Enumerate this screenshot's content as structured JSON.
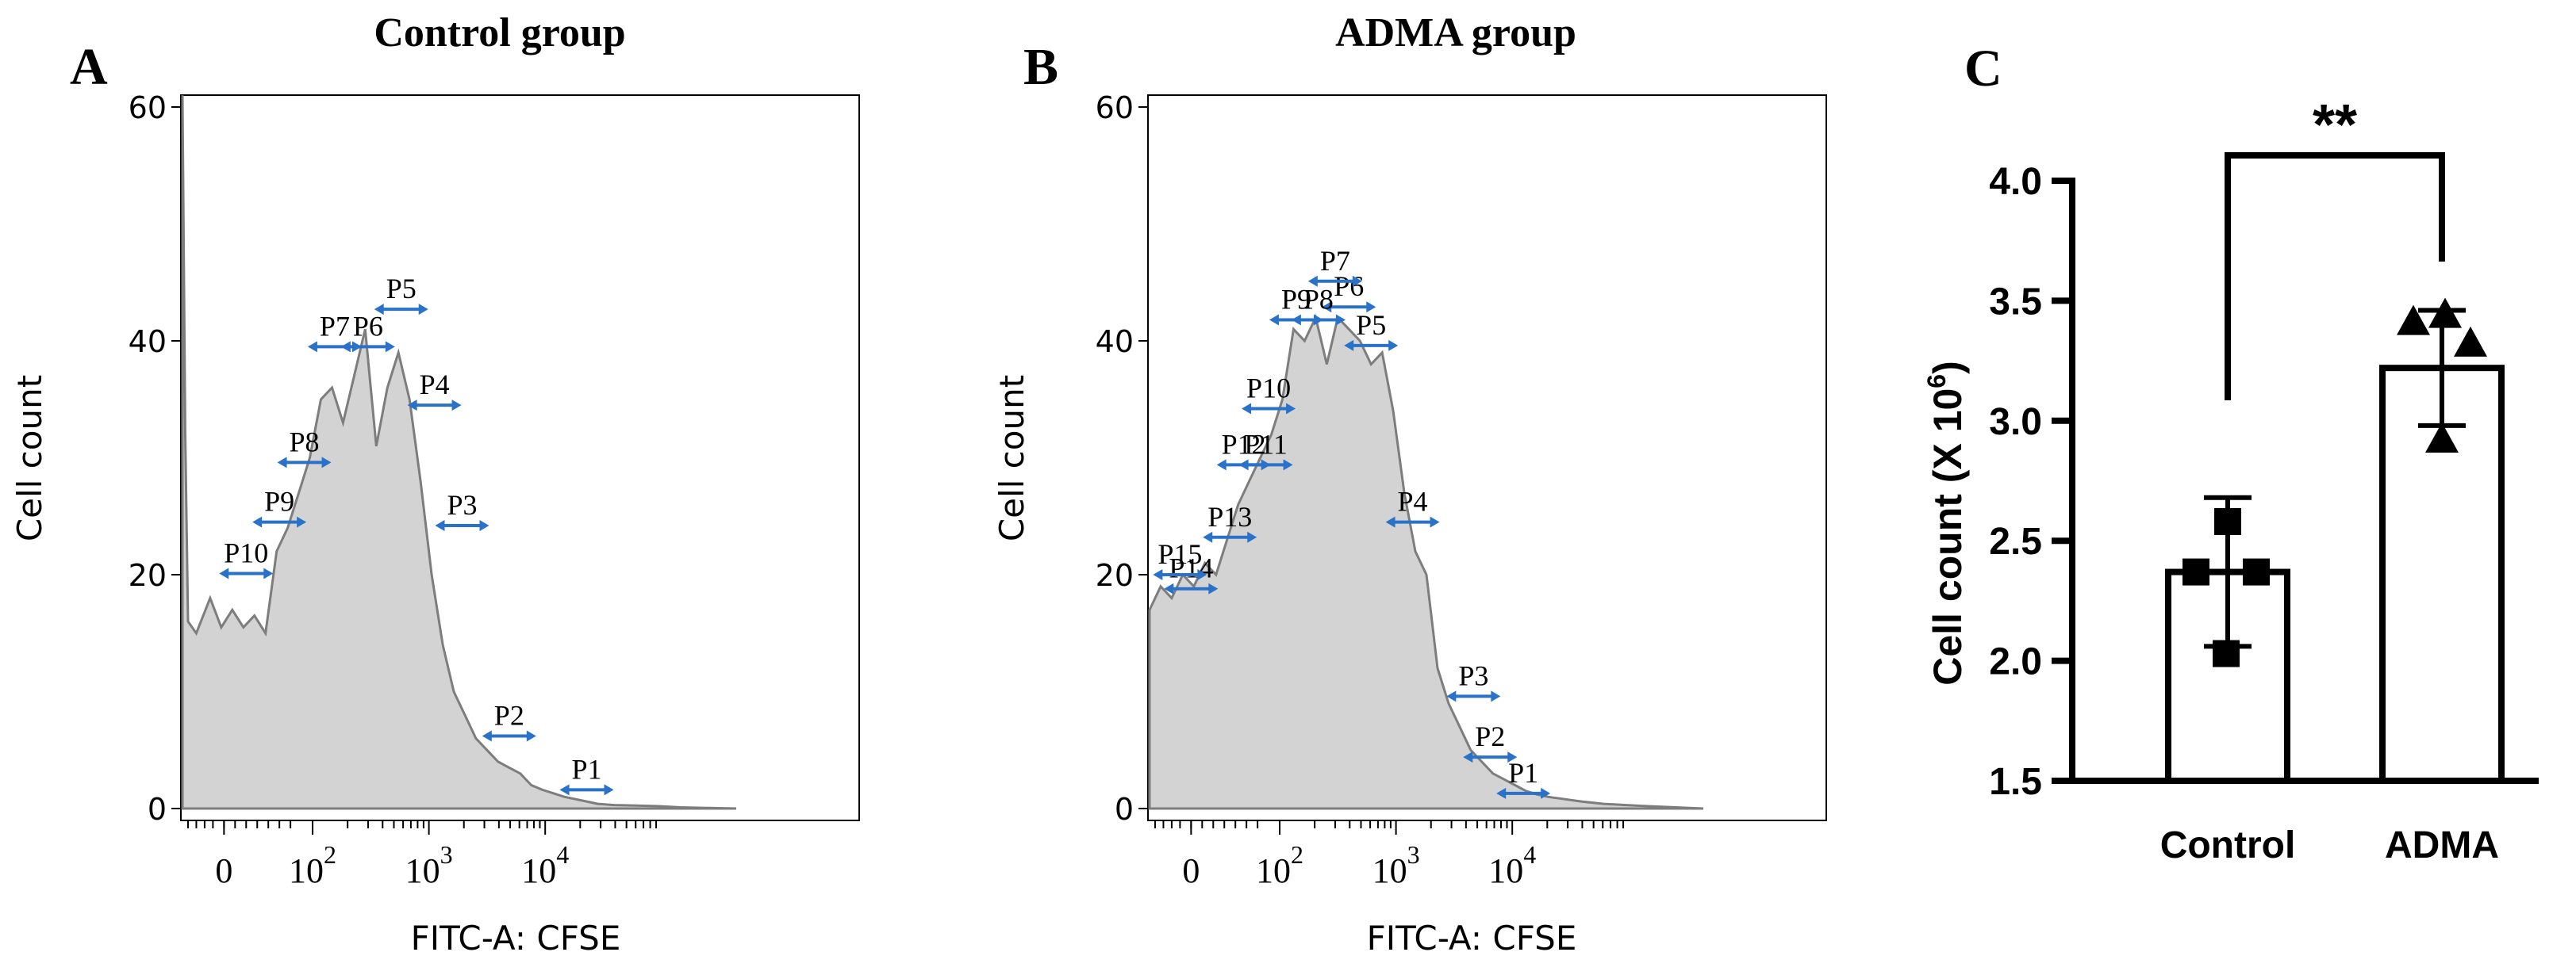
{
  "colors": {
    "fill": "#d3d3d3",
    "outline": "#7d7d7d",
    "arrow": "#2a72c9",
    "axis": "#000000"
  },
  "chart_data": [
    {
      "panel": "A",
      "type": "area",
      "title": "Control group",
      "xlabel": "FITC-A: CFSE",
      "ylabel": "Cell count",
      "ylim": [
        0,
        60
      ],
      "yticks": [
        "0",
        "20",
        "40",
        "60"
      ],
      "xtick_labels": [
        "0",
        "10",
        "10",
        "10"
      ],
      "xtick_exponents": [
        "",
        "2",
        "3",
        "4"
      ],
      "x_scale": "biexponential",
      "histogram": {
        "x": [
          0.0,
          0.005,
          0.01,
          0.025,
          0.05,
          0.07,
          0.09,
          0.11,
          0.13,
          0.15,
          0.17,
          0.19,
          0.21,
          0.23,
          0.25,
          0.27,
          0.29,
          0.31,
          0.33,
          0.35,
          0.37,
          0.39,
          0.41,
          0.43,
          0.45,
          0.47,
          0.49,
          0.51,
          0.53,
          0.55,
          0.57,
          0.59,
          0.61,
          0.63,
          0.65,
          0.67,
          0.69,
          0.71,
          0.73,
          0.75,
          0.78,
          0.82,
          0.86,
          0.9,
          0.95,
          1.0
        ],
        "y": [
          61,
          32,
          16,
          15,
          18,
          15.5,
          17,
          15.5,
          16.5,
          15,
          22,
          24,
          27,
          30,
          35,
          36,
          33,
          37,
          41,
          31,
          36,
          39,
          35,
          28,
          20,
          14,
          10,
          8,
          6,
          5,
          4,
          3.5,
          3,
          2,
          1.6,
          1.3,
          1,
          0.8,
          0.6,
          0.4,
          0.3,
          0.25,
          0.2,
          0.1,
          0.05,
          0
        ]
      },
      "gates": [
        {
          "label": "P1",
          "x": 0.73,
          "y": 1.6
        },
        {
          "label": "P2",
          "x": 0.59,
          "y": 6.2
        },
        {
          "label": "P3",
          "x": 0.505,
          "y": 24.2
        },
        {
          "label": "P4",
          "x": 0.455,
          "y": 34.5
        },
        {
          "label": "P5",
          "x": 0.395,
          "y": 42.7
        },
        {
          "label": "P6",
          "x": 0.335,
          "y": 39.5
        },
        {
          "label": "P7",
          "x": 0.275,
          "y": 39.5
        },
        {
          "label": "P8",
          "x": 0.22,
          "y": 29.6
        },
        {
          "label": "P9",
          "x": 0.175,
          "y": 24.5
        },
        {
          "label": "P10",
          "x": 0.115,
          "y": 20.1
        }
      ]
    },
    {
      "panel": "B",
      "type": "area",
      "title": "ADMA group",
      "xlabel": "FITC-A: CFSE",
      "ylabel": "Cell count",
      "ylim": [
        0,
        60
      ],
      "yticks": [
        "0",
        "20",
        "40",
        "60"
      ],
      "xtick_labels": [
        "0",
        "10",
        "10",
        "10"
      ],
      "xtick_exponents": [
        "",
        "2",
        "3",
        "4"
      ],
      "x_scale": "biexponential",
      "histogram": {
        "x": [
          0.0,
          0.02,
          0.04,
          0.06,
          0.08,
          0.1,
          0.12,
          0.14,
          0.16,
          0.18,
          0.2,
          0.22,
          0.24,
          0.26,
          0.28,
          0.3,
          0.32,
          0.34,
          0.36,
          0.38,
          0.4,
          0.42,
          0.44,
          0.46,
          0.48,
          0.5,
          0.52,
          0.54,
          0.56,
          0.58,
          0.6,
          0.62,
          0.64,
          0.66,
          0.68,
          0.7,
          0.72,
          0.75,
          0.78,
          0.82,
          0.86,
          0.9,
          0.95,
          1.0
        ],
        "y": [
          17,
          19,
          18,
          20,
          19,
          21,
          20,
          23,
          26,
          28,
          30,
          32,
          35,
          41,
          40,
          42,
          38,
          42,
          41,
          40,
          38,
          39,
          34,
          27,
          22,
          20,
          12,
          9,
          7,
          5,
          4,
          3,
          2.5,
          2,
          1.5,
          1.2,
          1,
          0.8,
          0.6,
          0.4,
          0.3,
          0.2,
          0.1,
          0
        ]
      },
      "gates": [
        {
          "label": "P1",
          "x": 0.675,
          "y": 1.3
        },
        {
          "label": "P2",
          "x": 0.615,
          "y": 4.4
        },
        {
          "label": "P3",
          "x": 0.585,
          "y": 9.6
        },
        {
          "label": "P4",
          "x": 0.475,
          "y": 24.5
        },
        {
          "label": "P5",
          "x": 0.4,
          "y": 39.6
        },
        {
          "label": "P6",
          "x": 0.36,
          "y": 42.9
        },
        {
          "label": "P7",
          "x": 0.335,
          "y": 45.1
        },
        {
          "label": "P8",
          "x": 0.305,
          "y": 41.8
        },
        {
          "label": "P9",
          "x": 0.265,
          "y": 41.8
        },
        {
          "label": "P10",
          "x": 0.215,
          "y": 34.2
        },
        {
          "label": "P11",
          "x": 0.21,
          "y": 29.4
        },
        {
          "label": "P12",
          "x": 0.17,
          "y": 29.4
        },
        {
          "label": "P13",
          "x": 0.145,
          "y": 23.2
        },
        {
          "label": "P14",
          "x": 0.075,
          "y": 18.8
        },
        {
          "label": "P15",
          "x": 0.055,
          "y": 20.0
        }
      ]
    },
    {
      "panel": "C",
      "type": "bar",
      "title": "",
      "categories": [
        "Control",
        "ADMA"
      ],
      "values": [
        2.37,
        3.22
      ],
      "errors": [
        0.31,
        0.24
      ],
      "points": [
        [
          2.58,
          2.37,
          2.37,
          2.03
        ],
        [
          3.44,
          3.41,
          3.32,
          2.92
        ]
      ],
      "markers": [
        "square",
        "triangle"
      ],
      "xlabel": "",
      "ylabel": "Cell count (X 10",
      "ylabel_exponent": "6",
      "ylabel_suffix": ")",
      "ylim": [
        1.5,
        4.0
      ],
      "yticks": [
        "1.5",
        "2.0",
        "2.5",
        "3.0",
        "3.5",
        "4.0"
      ],
      "significance": "**"
    }
  ]
}
